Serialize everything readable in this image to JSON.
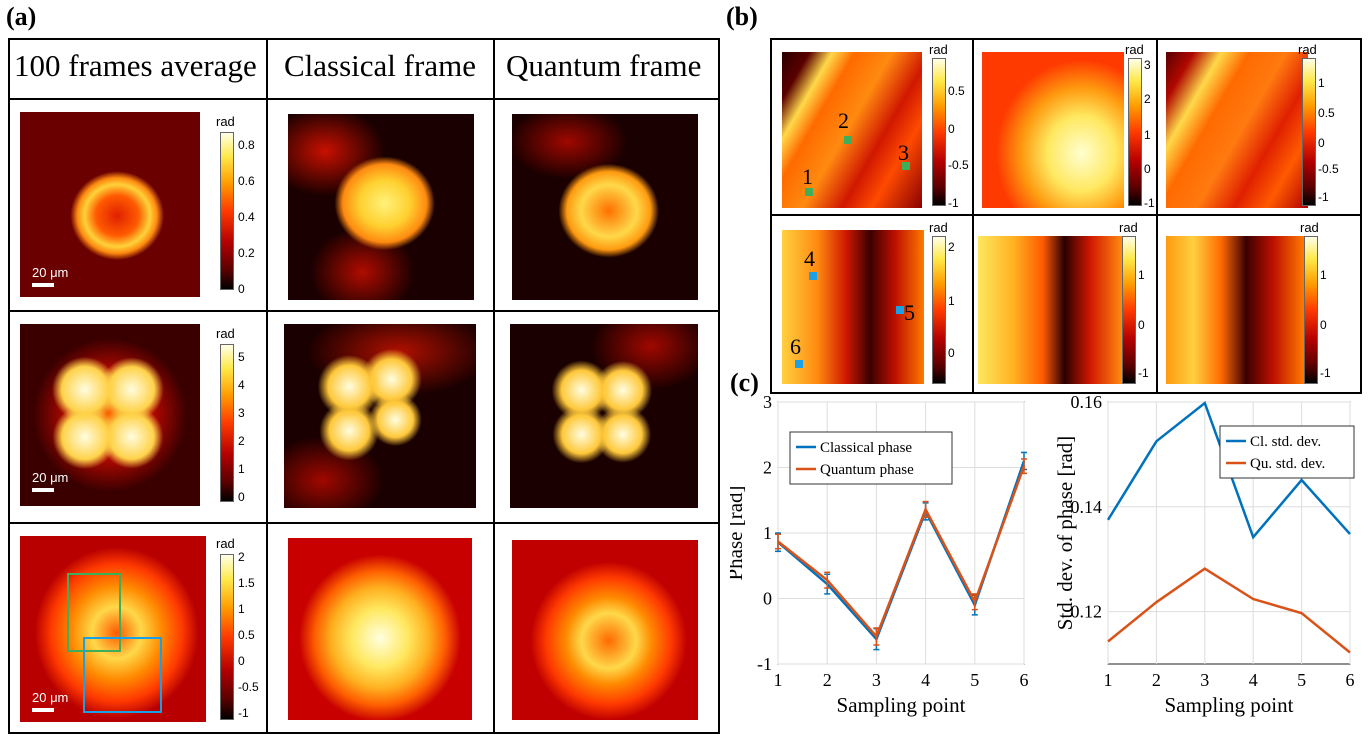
{
  "panels": {
    "a": "(a)",
    "b": "(b)",
    "c": "(c)"
  },
  "grid_a": {
    "headers": [
      "100 frames average",
      "Classical frame",
      "Quantum frame"
    ],
    "unit": "rad",
    "scalebar": "20 μm",
    "rows": [
      {
        "ticks": [
          "0.8",
          "0.6",
          "0.4",
          "0.2",
          "0"
        ]
      },
      {
        "ticks": [
          "5",
          "4",
          "3",
          "2",
          "1",
          "0"
        ]
      },
      {
        "ticks": [
          "2",
          "1.5",
          "1",
          "0.5",
          "0",
          "-0.5",
          "-1"
        ]
      }
    ]
  },
  "grid_b": {
    "unit": "rad",
    "top_ticks": [
      [
        "0.5",
        "0",
        "-0.5",
        "-1"
      ],
      [
        "3",
        "2",
        "1",
        "0",
        "-1"
      ],
      [
        "1",
        "0.5",
        "0",
        "-0.5",
        "-1"
      ]
    ],
    "bottom_ticks": [
      [
        "2",
        "1",
        "0"
      ],
      [
        "1",
        "0",
        "-1"
      ],
      [
        "1",
        "0",
        "-1"
      ]
    ],
    "points": [
      "1",
      "2",
      "3",
      "4",
      "5",
      "6"
    ]
  },
  "colors": {
    "classical": "#0072bd",
    "quantum": "#d95319",
    "green_marker": "#3fae5a",
    "blue_marker": "#1aa0e6"
  },
  "chart_data": [
    {
      "type": "line",
      "xlabel": "Sampling point",
      "ylabel": "Phase [rad]",
      "x": [
        1,
        2,
        3,
        4,
        5,
        6
      ],
      "xlim": [
        1,
        6
      ],
      "ylim": [
        -1,
        3
      ],
      "yticks": [
        "3",
        "2",
        "1",
        "0",
        "-1"
      ],
      "xticks": [
        "1",
        "2",
        "3",
        "4",
        "5",
        "6"
      ],
      "grid": true,
      "legend": "top-left",
      "series": [
        {
          "name": "Classical phase",
          "values": [
            0.86,
            0.22,
            -0.62,
            1.33,
            -0.1,
            2.1
          ],
          "errors": [
            0.14,
            0.15,
            0.16,
            0.13,
            0.15,
            0.13
          ]
        },
        {
          "name": "Quantum phase",
          "values": [
            0.87,
            0.28,
            -0.58,
            1.36,
            -0.05,
            2.02
          ],
          "errors": [
            0.11,
            0.12,
            0.13,
            0.12,
            0.12,
            0.11
          ]
        }
      ]
    },
    {
      "type": "line",
      "xlabel": "Sampling point",
      "ylabel": "Std. dev. of phase [rad]",
      "x": [
        1,
        2,
        3,
        4,
        5,
        6
      ],
      "xlim": [
        1,
        6
      ],
      "ylim": [
        0.11,
        0.16
      ],
      "yticks": [
        "0.16",
        "0.14",
        "0.12"
      ],
      "xticks": [
        "1",
        "2",
        "3",
        "4",
        "5",
        "6"
      ],
      "grid": true,
      "legend": "top-right",
      "series": [
        {
          "name": "Cl. std. dev.",
          "values": [
            0.1375,
            0.1525,
            0.1598,
            0.1342,
            0.1451,
            0.1348
          ]
        },
        {
          "name": "Qu. std. dev.",
          "values": [
            0.1143,
            0.1218,
            0.1282,
            0.1224,
            0.1197,
            0.1122
          ]
        }
      ]
    }
  ]
}
